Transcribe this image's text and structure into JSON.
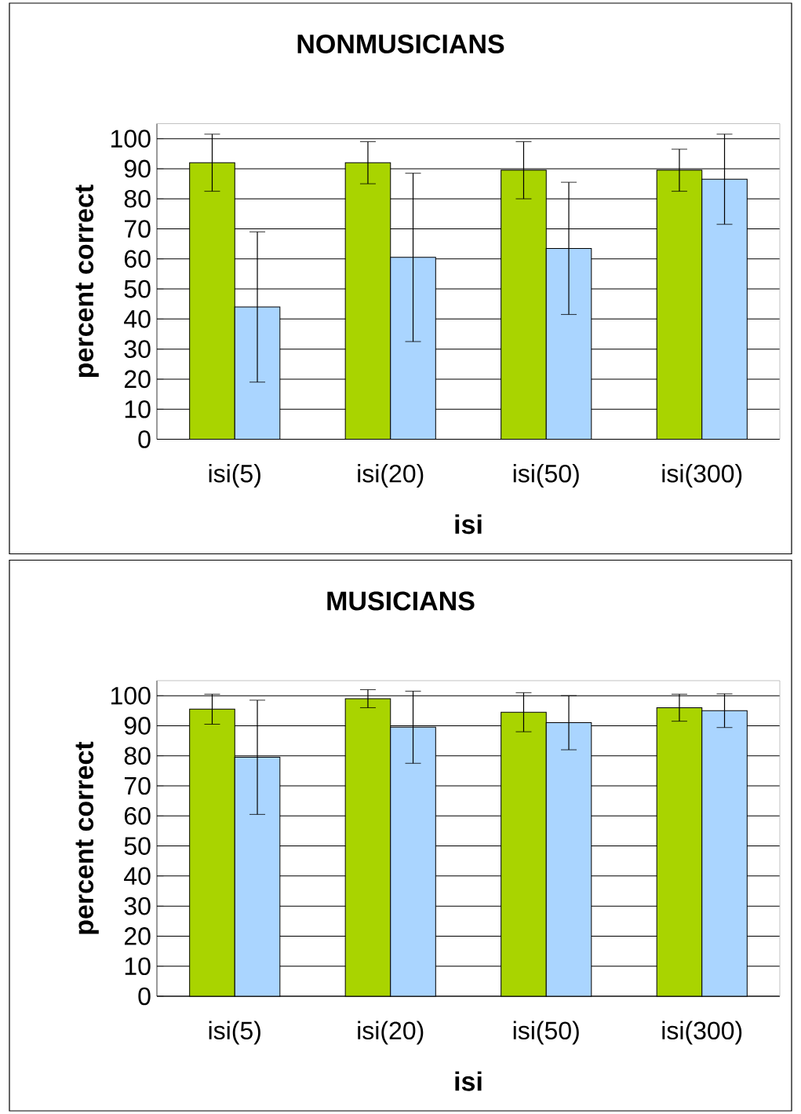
{
  "chart_data": [
    {
      "type": "bar",
      "title": "NONMUSICIANS",
      "xlabel": "isi",
      "ylabel": "percent correct",
      "categories": [
        "isi(5)",
        "isi(20)",
        "isi(50)",
        "isi(300)"
      ],
      "series": [
        {
          "color": "#a9d400",
          "values": [
            92,
            92,
            89.5,
            89.5
          ],
          "errors": [
            9.5,
            7,
            9.5,
            7
          ]
        },
        {
          "color": "#aad5ff",
          "values": [
            44,
            60.5,
            63.5,
            86.5
          ],
          "errors": [
            25,
            28,
            22,
            15
          ]
        }
      ],
      "ylim": [
        0,
        105
      ],
      "yticks": [
        0,
        10,
        20,
        30,
        40,
        50,
        60,
        70,
        80,
        90,
        100
      ],
      "grid": "y"
    },
    {
      "type": "bar",
      "title": "MUSICIANS",
      "xlabel": "isi",
      "ylabel": "percent correct",
      "categories": [
        "isi(5)",
        "isi(20)",
        "isi(50)",
        "isi(300)"
      ],
      "series": [
        {
          "color": "#a9d400",
          "values": [
            95.5,
            99,
            94.5,
            96
          ],
          "errors": [
            5,
            3,
            6.5,
            4.5
          ]
        },
        {
          "color": "#aad5ff",
          "values": [
            79.5,
            89.5,
            91,
            95
          ],
          "errors": [
            19,
            12,
            9,
            5.6
          ]
        }
      ],
      "ylim": [
        0,
        105
      ],
      "yticks": [
        0,
        10,
        20,
        30,
        40,
        50,
        60,
        70,
        80,
        90,
        100
      ],
      "grid": "y"
    }
  ]
}
